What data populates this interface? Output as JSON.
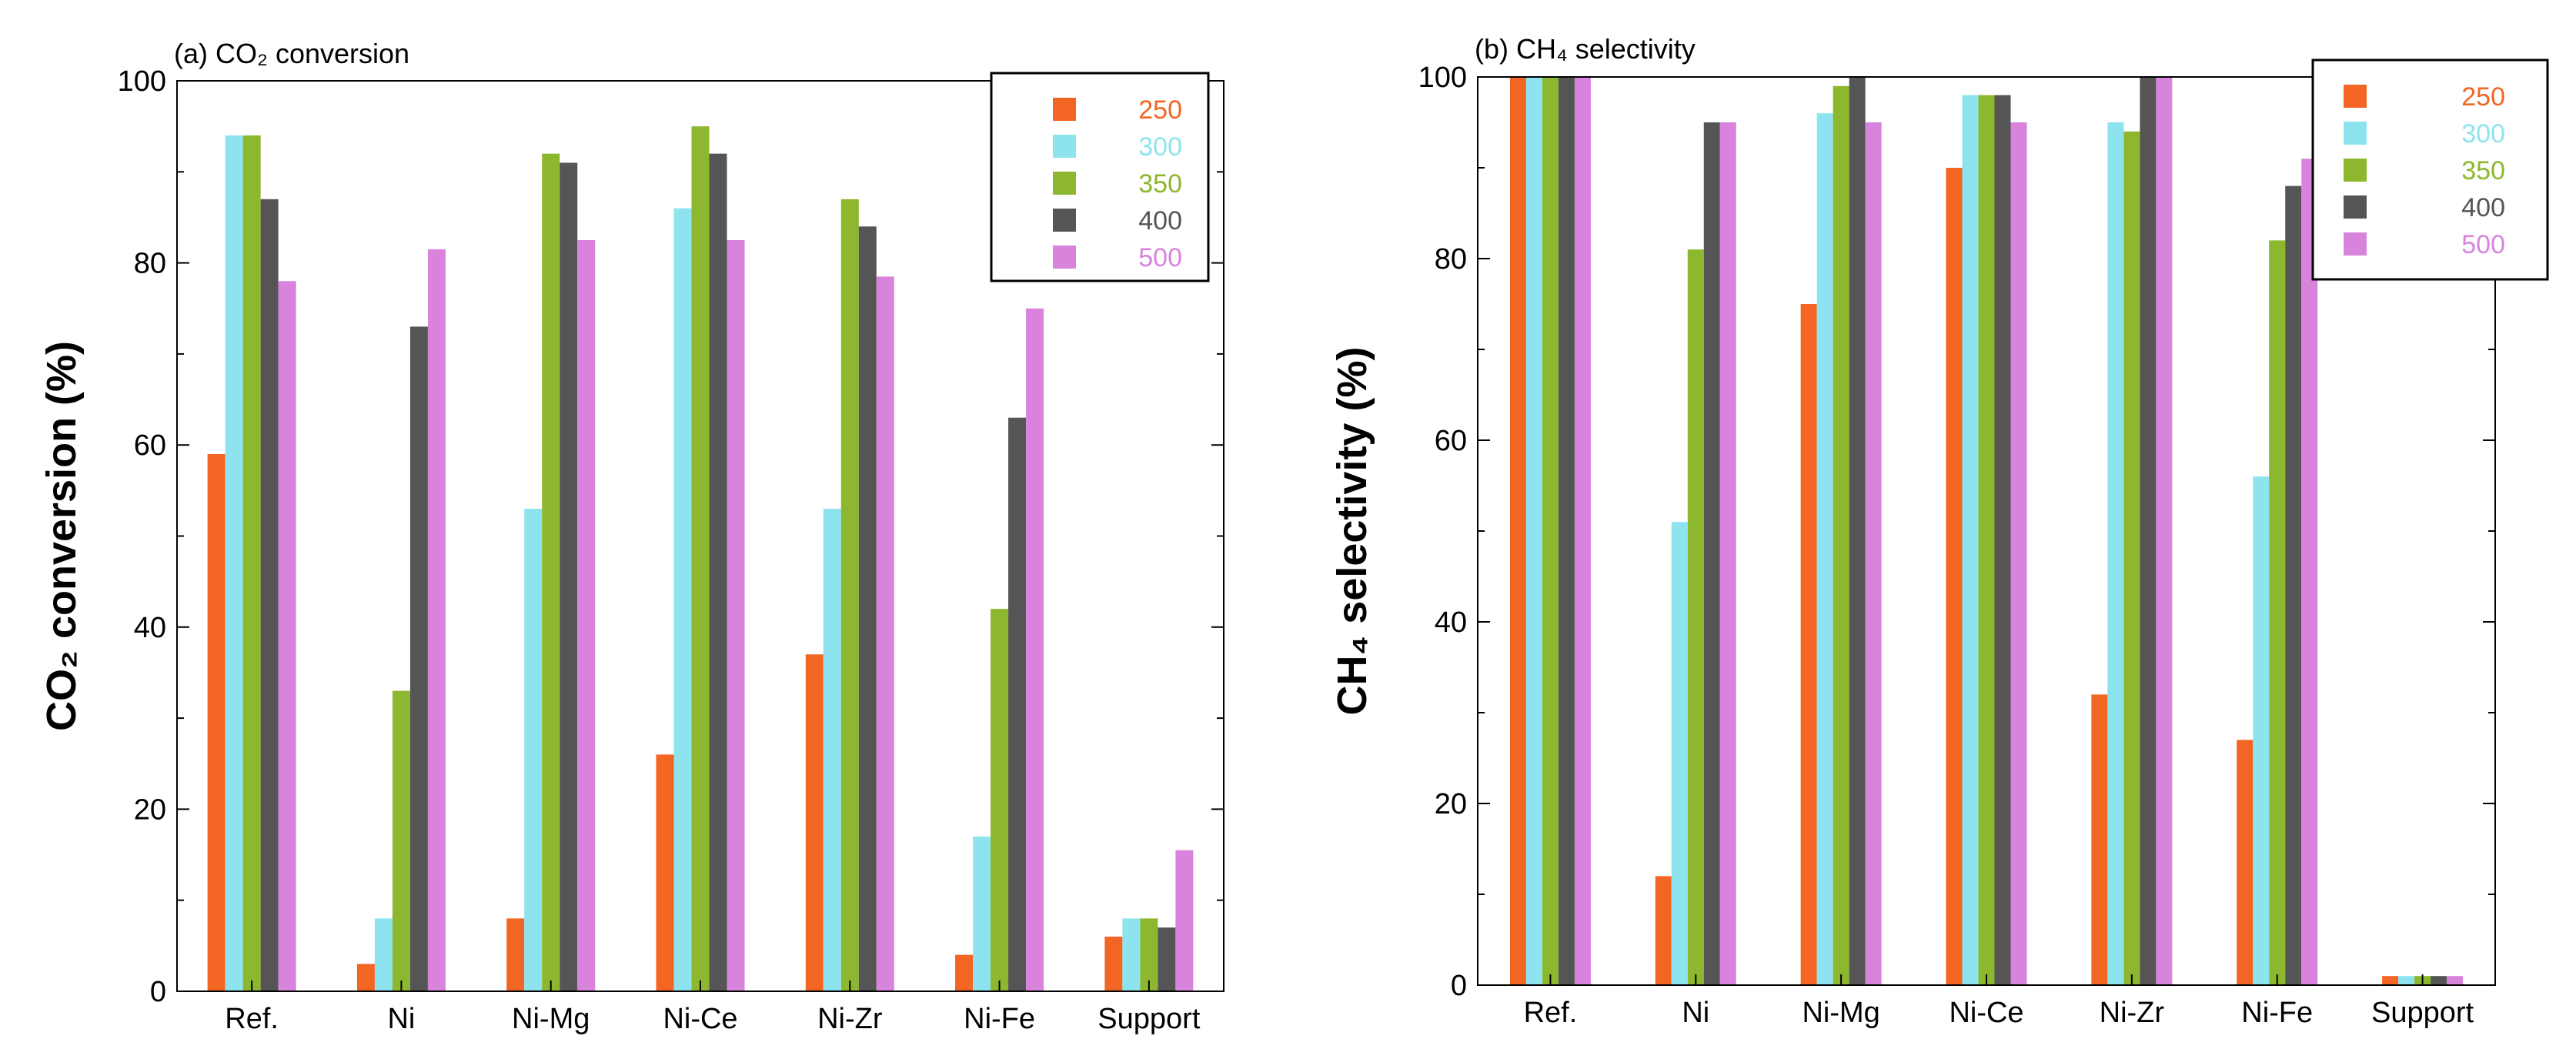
{
  "chart_data": [
    {
      "type": "bar",
      "title": "(a) CO₂ conversion",
      "xlabel": "",
      "ylabel": "CO₂ conversion (%)",
      "ylim": [
        0,
        100
      ],
      "yticks": [
        "0",
        "20",
        "40",
        "60",
        "80",
        "100"
      ],
      "categories": [
        "Ref.",
        "Ni",
        "Ni-Mg",
        "Ni-Ce",
        "Ni-Zr",
        "Ni-Fe",
        "Support"
      ],
      "series": [
        {
          "name": "250",
          "color": "#f26522",
          "values": [
            59,
            3,
            8,
            26,
            37,
            4,
            6
          ]
        },
        {
          "name": "300",
          "color": "#8ee4ee",
          "values": [
            94,
            8,
            53,
            86,
            53,
            17,
            8
          ]
        },
        {
          "name": "350",
          "color": "#8db72e",
          "values": [
            94,
            33,
            92,
            95,
            87,
            42,
            8
          ]
        },
        {
          "name": "400",
          "color": "#555555",
          "values": [
            87,
            73,
            91,
            92,
            84,
            63,
            7
          ]
        },
        {
          "name": "500",
          "color": "#d884dd",
          "values": [
            78,
            81.5,
            82.5,
            82.5,
            78.5,
            75,
            15.5
          ]
        }
      ],
      "grid": false,
      "legend_position": "top-right"
    },
    {
      "type": "bar",
      "title": "(b) CH₄ selectivity",
      "xlabel": "",
      "ylabel": "CH₄ selectivity (%)",
      "ylim": [
        0,
        100
      ],
      "yticks": [
        "0",
        "20",
        "40",
        "60",
        "80",
        "100"
      ],
      "categories": [
        "Ref.",
        "Ni",
        "Ni-Mg",
        "Ni-Ce",
        "Ni-Zr",
        "Ni-Fe",
        "Support"
      ],
      "series": [
        {
          "name": "250",
          "color": "#f26522",
          "values": [
            100,
            12,
            75,
            90,
            32,
            27,
            1
          ]
        },
        {
          "name": "300",
          "color": "#8ee4ee",
          "values": [
            100,
            51,
            96,
            98,
            95,
            56,
            1
          ]
        },
        {
          "name": "350",
          "color": "#8db72e",
          "values": [
            100,
            81,
            99,
            98,
            94,
            82,
            1
          ]
        },
        {
          "name": "400",
          "color": "#555555",
          "values": [
            100,
            95,
            100,
            98,
            100,
            88,
            1
          ]
        },
        {
          "name": "500",
          "color": "#d884dd",
          "values": [
            100,
            95,
            95,
            95,
            100,
            91,
            1
          ]
        }
      ],
      "grid": false,
      "legend_position": "top-right"
    }
  ]
}
